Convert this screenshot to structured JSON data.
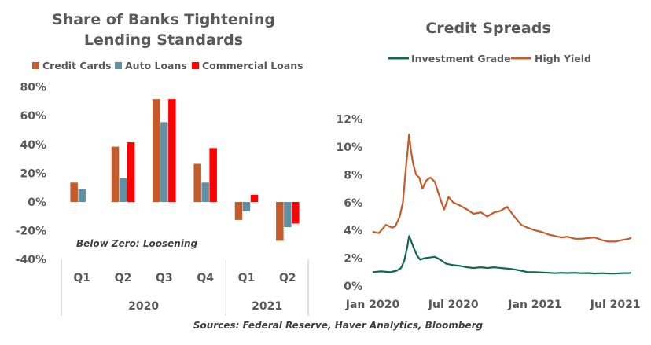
{
  "sources": "Sources: Federal Reserve, Haver Analytics, Bloomberg",
  "chart_data": [
    {
      "type": "bar",
      "title": "Share of Banks Tightening Lending Standards",
      "title_lines": [
        "Share of Banks Tightening",
        "Lending Standards"
      ],
      "annotation": "Below Zero: Loosening",
      "categories": [
        "Q1",
        "Q2",
        "Q3",
        "Q4",
        "Q1",
        "Q2"
      ],
      "groups": [
        {
          "label": "2020",
          "count": 4
        },
        {
          "label": "2021",
          "count": 2
        }
      ],
      "series": [
        {
          "name": "Credit Cards",
          "color": "#C55A2B",
          "values": [
            13.5,
            38.5,
            71.5,
            26.5,
            -12.5,
            -27
          ]
        },
        {
          "name": "Auto Loans",
          "color": "#5F90A3",
          "values": [
            9,
            16.5,
            55.5,
            13.5,
            -6.5,
            -17.5
          ]
        },
        {
          "name": "Commercial Loans",
          "color": "#FF0000",
          "values": [
            null,
            41.5,
            71.5,
            37.5,
            5,
            -15
          ]
        }
      ],
      "ylim": [
        -40,
        80
      ],
      "yticks": [
        -40,
        -20,
        0,
        20,
        40,
        60,
        80
      ],
      "ytick_labels": [
        "-40%",
        "-20%",
        "0%",
        "20%",
        "40%",
        "60%",
        "80%"
      ],
      "grid": false,
      "legend_position": "top"
    },
    {
      "type": "line",
      "title": "Credit Spreads",
      "xlim": [
        "2020-01-01",
        "2021-08-06"
      ],
      "xticks": [
        "2020-01-01",
        "2020-07-01",
        "2021-01-01",
        "2021-07-01"
      ],
      "xtick_labels": [
        "Jan 2020",
        "Jul 2020",
        "Jan 2021",
        "Jul 2021"
      ],
      "ylim": [
        0,
        12
      ],
      "yticks": [
        0,
        2,
        4,
        6,
        8,
        10,
        12
      ],
      "ytick_labels": [
        "0%",
        "2%",
        "4%",
        "6%",
        "8%",
        "10%",
        "12%"
      ],
      "grid": false,
      "legend_position": "top",
      "series": [
        {
          "name": "Investment Grade",
          "color": "#0B6B4B",
          "x": [
            "2020-01-01",
            "2020-01-20",
            "2020-02-10",
            "2020-02-24",
            "2020-03-05",
            "2020-03-12",
            "2020-03-19",
            "2020-03-23",
            "2020-03-27",
            "2020-04-03",
            "2020-04-10",
            "2020-04-17",
            "2020-04-27",
            "2020-05-08",
            "2020-05-20",
            "2020-06-01",
            "2020-06-15",
            "2020-07-01",
            "2020-07-15",
            "2020-08-01",
            "2020-08-15",
            "2020-09-01",
            "2020-09-15",
            "2020-10-01",
            "2020-10-15",
            "2020-11-01",
            "2020-11-15",
            "2020-12-01",
            "2020-12-15",
            "2021-01-01",
            "2021-01-15",
            "2021-02-01",
            "2021-02-15",
            "2021-03-01",
            "2021-03-15",
            "2021-04-01",
            "2021-04-15",
            "2021-05-01",
            "2021-05-15",
            "2021-06-01",
            "2021-06-15",
            "2021-07-01",
            "2021-07-15",
            "2021-08-01",
            "2021-08-06"
          ],
          "values": [
            1.0,
            1.05,
            1.0,
            1.1,
            1.3,
            1.8,
            2.8,
            3.6,
            3.3,
            2.7,
            2.2,
            1.9,
            2.0,
            2.05,
            2.1,
            1.9,
            1.6,
            1.5,
            1.45,
            1.35,
            1.3,
            1.35,
            1.3,
            1.35,
            1.3,
            1.25,
            1.2,
            1.1,
            1.0,
            1.0,
            0.98,
            0.95,
            0.92,
            0.95,
            0.93,
            0.95,
            0.92,
            0.93,
            0.9,
            0.92,
            0.9,
            0.9,
            0.92,
            0.93,
            0.95
          ]
        },
        {
          "name": "High Yield",
          "color": "#C55A2B",
          "x": [
            "2020-01-01",
            "2020-01-15",
            "2020-01-31",
            "2020-02-14",
            "2020-02-21",
            "2020-03-02",
            "2020-03-09",
            "2020-03-16",
            "2020-03-20",
            "2020-03-23",
            "2020-03-27",
            "2020-04-01",
            "2020-04-08",
            "2020-04-15",
            "2020-04-22",
            "2020-05-01",
            "2020-05-10",
            "2020-05-20",
            "2020-06-01",
            "2020-06-10",
            "2020-06-20",
            "2020-07-01",
            "2020-07-15",
            "2020-08-01",
            "2020-08-15",
            "2020-09-01",
            "2020-09-15",
            "2020-10-01",
            "2020-10-15",
            "2020-10-30",
            "2020-11-15",
            "2020-12-01",
            "2020-12-15",
            "2021-01-01",
            "2021-01-15",
            "2021-02-01",
            "2021-02-15",
            "2021-03-01",
            "2021-03-15",
            "2021-04-01",
            "2021-04-15",
            "2021-05-01",
            "2021-05-15",
            "2021-06-01",
            "2021-06-15",
            "2021-07-01",
            "2021-07-15",
            "2021-08-01",
            "2021-08-06"
          ],
          "values": [
            3.9,
            3.8,
            4.4,
            4.2,
            4.3,
            5.0,
            6.0,
            8.5,
            9.8,
            10.9,
            9.8,
            8.8,
            8.0,
            7.8,
            7.0,
            7.6,
            7.8,
            7.5,
            6.3,
            5.5,
            6.4,
            6.0,
            5.8,
            5.5,
            5.2,
            5.3,
            5.0,
            5.3,
            5.4,
            5.7,
            5.0,
            4.4,
            4.2,
            4.0,
            3.9,
            3.7,
            3.6,
            3.5,
            3.55,
            3.4,
            3.4,
            3.45,
            3.5,
            3.3,
            3.2,
            3.2,
            3.3,
            3.4,
            3.5
          ]
        }
      ]
    }
  ]
}
